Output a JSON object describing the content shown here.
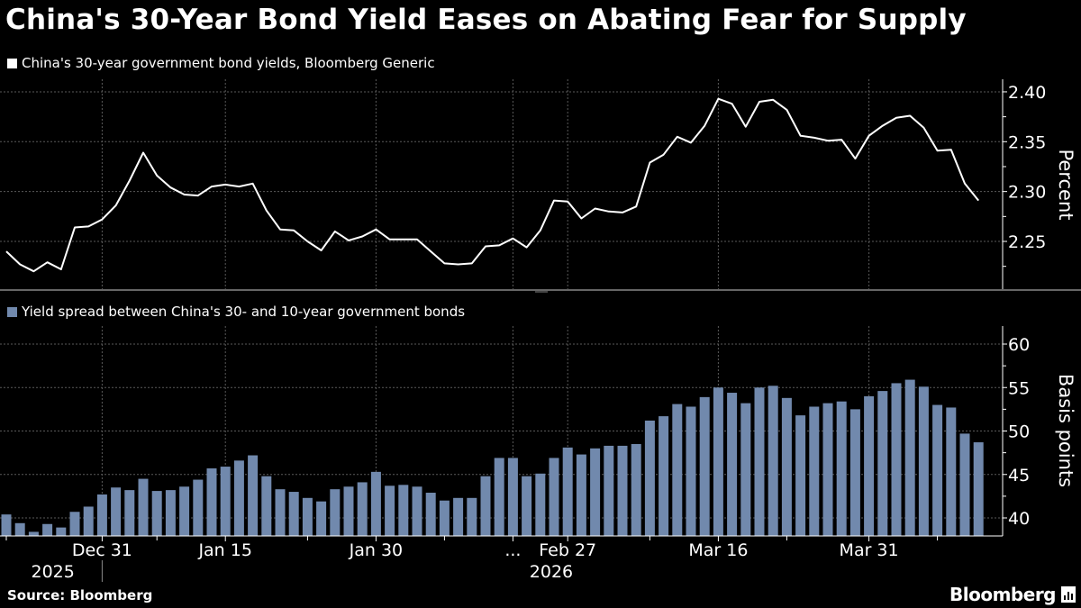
{
  "title": "China's 30-Year Bond Yield Eases on Abating Fear for Supply",
  "source": "Source: Bloomberg",
  "logo_text": "Bloomberg",
  "colors": {
    "background": "#000000",
    "line": "#ffffff",
    "bars": "#7189ad",
    "grid": "#5a5a5a"
  },
  "chart_data": [
    {
      "type": "line",
      "legend": "China's 30-year government bond yields, Bloomberg Generic",
      "ylabel": "Percent",
      "ylim": [
        2.2,
        2.413
      ],
      "y_ticks": [
        "2.25",
        "2.30",
        "2.35",
        "2.40"
      ],
      "y_tick_values": [
        2.25,
        2.3,
        2.35,
        2.4
      ],
      "grid": true,
      "values": [
        2.24,
        2.227,
        2.22,
        2.229,
        2.222,
        2.264,
        2.265,
        2.272,
        2.286,
        2.311,
        2.339,
        2.316,
        2.304,
        2.297,
        2.296,
        2.305,
        2.307,
        2.305,
        2.308,
        2.281,
        2.262,
        2.261,
        2.25,
        2.241,
        2.26,
        2.251,
        2.255,
        2.262,
        2.252,
        2.252,
        2.252,
        2.24,
        2.228,
        2.227,
        2.228,
        2.245,
        2.246,
        2.253,
        2.244,
        2.261,
        2.291,
        2.29,
        2.273,
        2.283,
        2.28,
        2.279,
        2.285,
        2.329,
        2.337,
        2.355,
        2.349,
        2.366,
        2.393,
        2.388,
        2.365,
        2.39,
        2.392,
        2.382,
        2.356,
        2.354,
        2.351,
        2.352,
        2.333,
        2.356,
        2.366,
        2.374,
        2.376,
        2.364,
        2.341,
        2.342,
        2.308,
        2.291
      ]
    },
    {
      "type": "bar",
      "legend": "Yield spread between China's 30- and 10-year government bonds",
      "ylabel": "Basis points",
      "ylim": [
        38,
        61.5
      ],
      "y_ticks": [
        "40",
        "45",
        "50",
        "55",
        "60"
      ],
      "y_tick_values": [
        40,
        45,
        50,
        55,
        60
      ],
      "grid": true,
      "values": [
        40.4,
        39.4,
        38.4,
        39.3,
        38.9,
        40.7,
        41.3,
        42.7,
        43.5,
        43.2,
        44.5,
        43.1,
        43.2,
        43.6,
        44.4,
        45.7,
        45.9,
        46.6,
        47.2,
        44.8,
        43.3,
        43.0,
        42.3,
        41.9,
        43.3,
        43.6,
        44.1,
        45.3,
        43.7,
        43.8,
        43.6,
        42.9,
        42.0,
        42.3,
        42.3,
        44.8,
        46.9,
        46.9,
        44.8,
        45.1,
        46.9,
        48.1,
        47.3,
        48.0,
        48.3,
        48.3,
        48.5,
        51.2,
        51.7,
        53.1,
        52.8,
        53.9,
        55.0,
        54.4,
        53.2,
        55.0,
        55.2,
        53.8,
        51.8,
        52.8,
        53.2,
        53.4,
        52.5,
        54.0,
        54.6,
        55.5,
        55.9,
        55.1,
        53.0,
        52.7,
        49.7,
        48.7
      ],
      "x_tick_labels": [
        {
          "label": "Dec 31",
          "index": 7
        },
        {
          "label": "Jan 15",
          "index": 16
        },
        {
          "label": "Jan 30",
          "index": 27
        },
        {
          "label": "...",
          "index": 37
        },
        {
          "label": "Feb 27",
          "index": 41
        },
        {
          "label": "Mar 16",
          "index": 52
        },
        {
          "label": "Mar 31",
          "index": 63
        }
      ],
      "year_labels": [
        {
          "label": "2025",
          "index": 3.4
        },
        {
          "label": "2026",
          "index": 39.8
        }
      ]
    }
  ]
}
